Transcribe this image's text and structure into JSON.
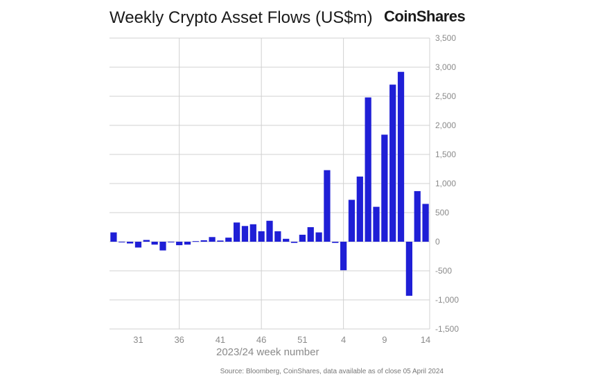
{
  "header": {
    "title": "Weekly Crypto Asset Flows (US$m)",
    "brand": "CoinShares"
  },
  "footer": {
    "source": "Source: Bloomberg, CoinShares, data available as of close 05 April 2024"
  },
  "colors": {
    "bar": "#1f1fd6",
    "grid": "#d0d0d0",
    "tick": "#8a8a8a"
  },
  "chart_data": {
    "type": "bar",
    "title": "Weekly Crypto Asset Flows (US$m)",
    "xlabel": "2023/24 week number",
    "ylabel": "",
    "ylim": [
      -1500,
      3500
    ],
    "ytick_values": [
      3500,
      3000,
      2500,
      2000,
      1500,
      1000,
      500,
      0,
      -500,
      -1000,
      -1500
    ],
    "ytick_labels": [
      "3,500",
      "3,000",
      "2,500",
      "2,000",
      "1,500",
      "1,000",
      "500",
      "0",
      "-500",
      "-1,000",
      "-1,500"
    ],
    "xtick_labels": [
      {
        "label": "31",
        "index": 3
      },
      {
        "label": "36",
        "index": 8
      },
      {
        "label": "41",
        "index": 13
      },
      {
        "label": "46",
        "index": 18
      },
      {
        "label": "51",
        "index": 23
      },
      {
        "label": "4",
        "index": 28
      },
      {
        "label": "9",
        "index": 33
      },
      {
        "label": "14",
        "index": 38
      }
    ],
    "vgrid_indices": [
      8.5,
      18.5,
      28.5
    ],
    "values": [
      160,
      -10,
      -30,
      -100,
      30,
      -50,
      -150,
      0,
      -60,
      -50,
      10,
      25,
      80,
      20,
      70,
      330,
      270,
      300,
      180,
      360,
      180,
      50,
      -20,
      120,
      250,
      160,
      1230,
      -20,
      -490,
      720,
      1120,
      2480,
      600,
      1840,
      2700,
      2920,
      -930,
      870,
      650
    ],
    "grid": true,
    "legend": "none"
  }
}
